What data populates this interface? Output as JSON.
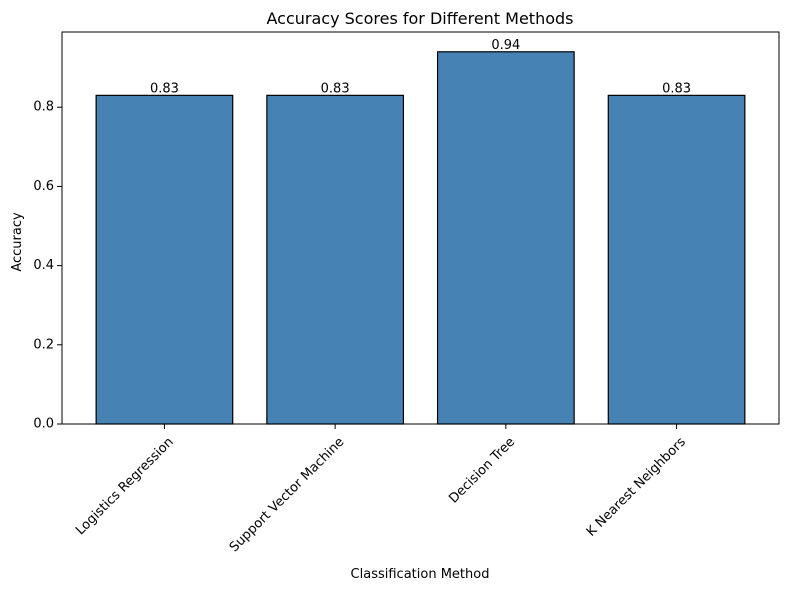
{
  "chart_data": {
    "type": "bar",
    "title": "Accuracy Scores for Different Methods",
    "xlabel": "Classification Method",
    "ylabel": "Accuracy",
    "categories": [
      "Logistics Regression",
      "Support Vector Machine",
      "Decision Tree",
      "K Nearest Neighbors"
    ],
    "values": [
      0.83,
      0.83,
      0.94,
      0.83
    ],
    "value_labels": [
      "0.83",
      "0.83",
      "0.94",
      "0.83"
    ],
    "ylim": [
      0,
      0.99
    ],
    "yticks": [
      0.0,
      0.2,
      0.4,
      0.6,
      0.8
    ],
    "ytick_labels": [
      "0.0",
      "0.2",
      "0.4",
      "0.6",
      "0.8"
    ],
    "grid": false,
    "legend": "none",
    "colors": {
      "bar_fill": "#4682b4",
      "bar_edge": "#000000",
      "axes": "#000000"
    }
  }
}
